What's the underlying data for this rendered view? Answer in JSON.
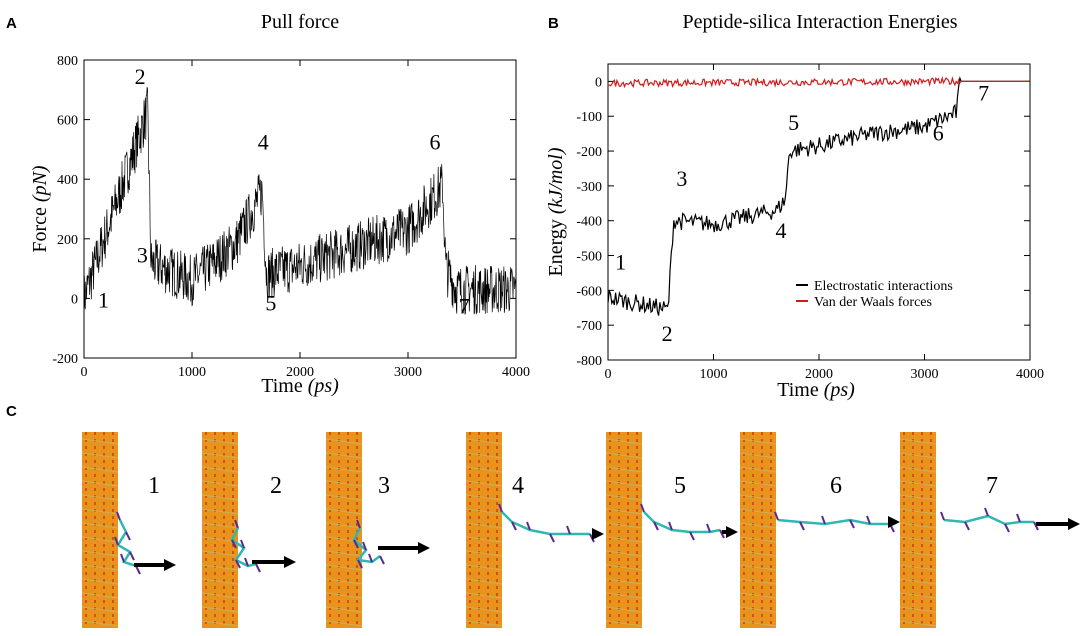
{
  "panels": {
    "a": "A",
    "b": "B",
    "c": "C"
  },
  "colors": {
    "electrostatic": "#000000",
    "vdw": "#d21a1a",
    "silica_orange": "#e8941c",
    "silica_red": "#cc2200",
    "peptide_cyan": "#2fb8b0",
    "peptide_purple": "#5a2a90",
    "arrow": "#000000"
  },
  "chart_data": [
    {
      "type": "line",
      "title": "Pull force",
      "xlabel_main": "Time",
      "xlabel_unit": "(ps)",
      "ylabel_main": "Force",
      "ylabel_unit": "(pN)",
      "xlim": [
        0,
        4000
      ],
      "ylim": [
        -200,
        800
      ],
      "xticks": [
        0,
        1000,
        2000,
        3000,
        4000
      ],
      "yticks": [
        -200,
        0,
        200,
        400,
        600,
        800
      ],
      "xtick_labels": [
        "0",
        "1000",
        "2000",
        "3000",
        "4000"
      ],
      "ytick_labels": [
        "-200",
        "0",
        "200",
        "400",
        "600",
        "800"
      ],
      "noise": 85,
      "series": [
        {
          "name": "Pull force",
          "color": "#000000",
          "x": [
            0,
            590,
            620,
            1000,
            1400,
            1650,
            1690,
            2000,
            2500,
            3000,
            3320,
            3350,
            3450,
            4000
          ],
          "y": [
            0,
            630,
            120,
            60,
            180,
            360,
            80,
            110,
            170,
            230,
            380,
            100,
            30,
            30
          ]
        }
      ],
      "markers": [
        {
          "label": "1",
          "x": 180,
          "y": -30
        },
        {
          "label": "2",
          "x": 520,
          "y": 720
        },
        {
          "label": "3",
          "x": 540,
          "y": 120
        },
        {
          "label": "4",
          "x": 1660,
          "y": 500
        },
        {
          "label": "5",
          "x": 1730,
          "y": -40
        },
        {
          "label": "6",
          "x": 3250,
          "y": 500
        },
        {
          "label": "7",
          "x": 3520,
          "y": -50
        }
      ]
    },
    {
      "type": "line",
      "title": "Peptide-silica Interaction Energies",
      "xlabel_main": "Time",
      "xlabel_unit": "(ps)",
      "ylabel_main": "Energy",
      "ylabel_unit": "(kJ/mol)",
      "xlim": [
        0,
        4000
      ],
      "ylim": [
        -800,
        50
      ],
      "xticks": [
        0,
        1000,
        2000,
        3000,
        4000
      ],
      "yticks": [
        -800,
        -700,
        -600,
        -500,
        -400,
        -300,
        -200,
        -100,
        0
      ],
      "xtick_labels": [
        "0",
        "1000",
        "2000",
        "3000",
        "4000"
      ],
      "ytick_labels": [
        "-800",
        "-700",
        "-600",
        "-500",
        "-400",
        "-300",
        "-200",
        "-100",
        "0"
      ],
      "series": [
        {
          "name": "Electrostatic interactions",
          "color": "#000000",
          "noise": 25,
          "x": [
            0,
            570,
            620,
            1000,
            1600,
            1680,
            1720,
            2000,
            2500,
            3000,
            3300,
            3340,
            4000
          ],
          "y": [
            -620,
            -655,
            -400,
            -410,
            -370,
            -340,
            -200,
            -185,
            -150,
            -130,
            -90,
            0,
            0
          ]
        },
        {
          "name": "Van der Waals forces",
          "color": "#d21a1a",
          "noise": 10,
          "x": [
            0,
            3340,
            4000
          ],
          "y": [
            -5,
            0,
            0
          ]
        }
      ],
      "markers": [
        {
          "label": "1",
          "x": 120,
          "y": -540
        },
        {
          "label": "2",
          "x": 560,
          "y": -745
        },
        {
          "label": "3",
          "x": 700,
          "y": -300
        },
        {
          "label": "4",
          "x": 1640,
          "y": -450
        },
        {
          "label": "5",
          "x": 1760,
          "y": -140
        },
        {
          "label": "6",
          "x": 3130,
          "y": -170
        },
        {
          "label": "7",
          "x": 3560,
          "y": -55
        }
      ]
    }
  ],
  "snapshots": [
    {
      "label": "1"
    },
    {
      "label": "2"
    },
    {
      "label": "3"
    },
    {
      "label": "4"
    },
    {
      "label": "5"
    },
    {
      "label": "6"
    },
    {
      "label": "7"
    }
  ]
}
